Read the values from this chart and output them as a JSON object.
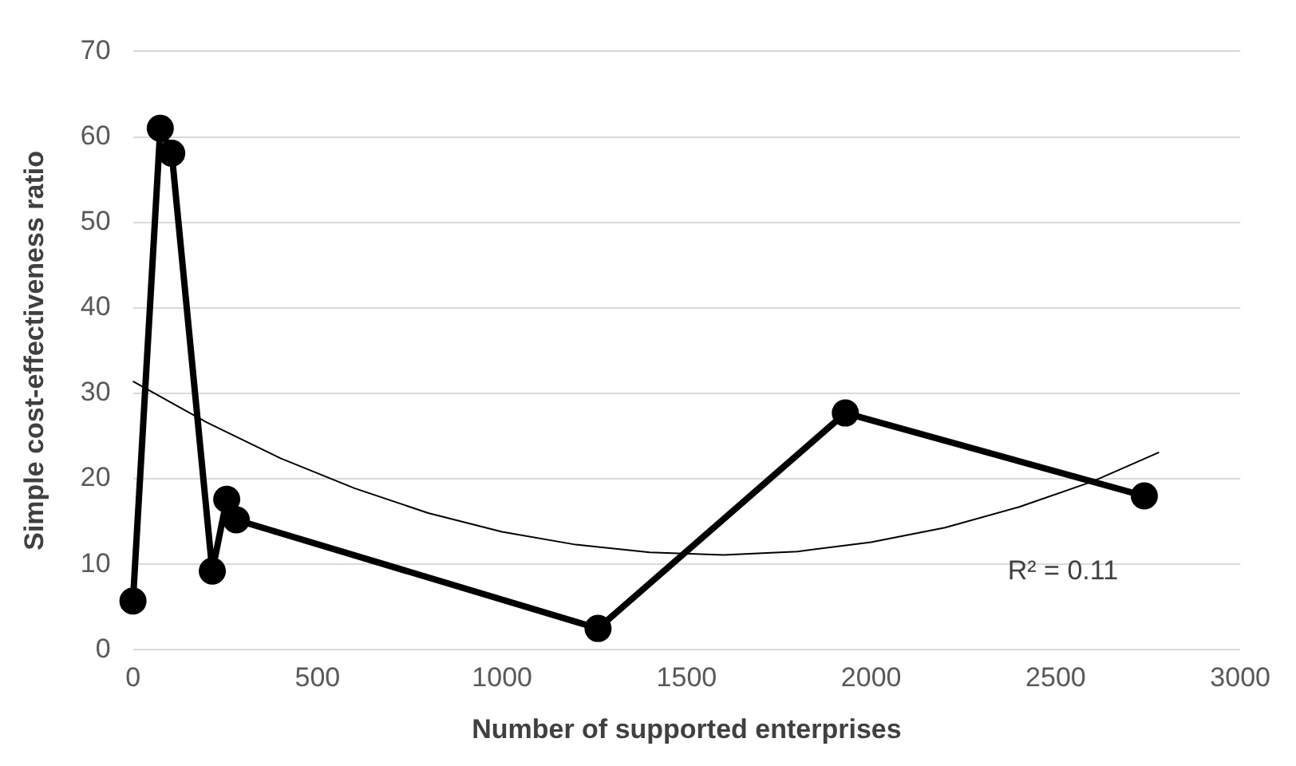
{
  "chart_data": {
    "type": "line",
    "xlabel": "Number of supported enterprises",
    "ylabel": "Simple cost-effectiveness ratio",
    "xlim": [
      0,
      3000
    ],
    "xticks": [
      0,
      500,
      1000,
      1500,
      2000,
      2500,
      3000
    ],
    "ylim": [
      0,
      70
    ],
    "yticks": [
      0,
      10,
      20,
      30,
      40,
      50,
      60,
      70
    ],
    "grid": "y",
    "legend": false,
    "series": [
      {
        "color": "#000000",
        "marker": "circle",
        "x": [
          0,
          74,
          105,
          215,
          254,
          280,
          1260,
          1930,
          2740
        ],
        "values": [
          5.7,
          61,
          58.1,
          9.2,
          17.6,
          15.2,
          2.5,
          27.7,
          18
        ]
      },
      {
        "color": "#000000",
        "marker": "none",
        "x": [
          0,
          200,
          400,
          600,
          800,
          1000,
          1200,
          1400,
          1600,
          1800,
          2000,
          2200,
          2400,
          2600,
          2780
        ],
        "values": [
          31.4,
          26.6,
          22.4,
          18.9,
          16,
          13.8,
          12.3,
          11.4,
          11.1,
          11.5,
          12.6,
          14.3,
          16.7,
          19.7,
          23.1
        ]
      }
    ],
    "annotations": [
      "R² = 0.11"
    ]
  }
}
